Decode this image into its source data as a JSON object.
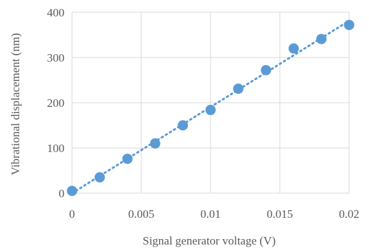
{
  "chart_data": {
    "type": "scatter",
    "title": "",
    "xlabel": "Signal generator voltage (V)",
    "ylabel": "Vibrational displacement (nm)",
    "xlim": [
      0,
      0.02
    ],
    "ylim": [
      0,
      400
    ],
    "x_ticks": [
      "0",
      "0.005",
      "0.01",
      "0.015",
      "0.02"
    ],
    "y_ticks": [
      "0",
      "100",
      "200",
      "300",
      "400"
    ],
    "grid": true,
    "series": [
      {
        "x": [
          0,
          0.002,
          0.004,
          0.006,
          0.008,
          0.01,
          0.012,
          0.014,
          0.016,
          0.018,
          0.02
        ],
        "y": [
          5,
          35,
          76,
          110,
          150,
          184,
          231,
          272,
          320,
          341,
          372
        ],
        "color": "#5b9bd5"
      }
    ],
    "trendline": {
      "type": "linear",
      "style": "dotted",
      "color": "#5b9bd5"
    }
  }
}
